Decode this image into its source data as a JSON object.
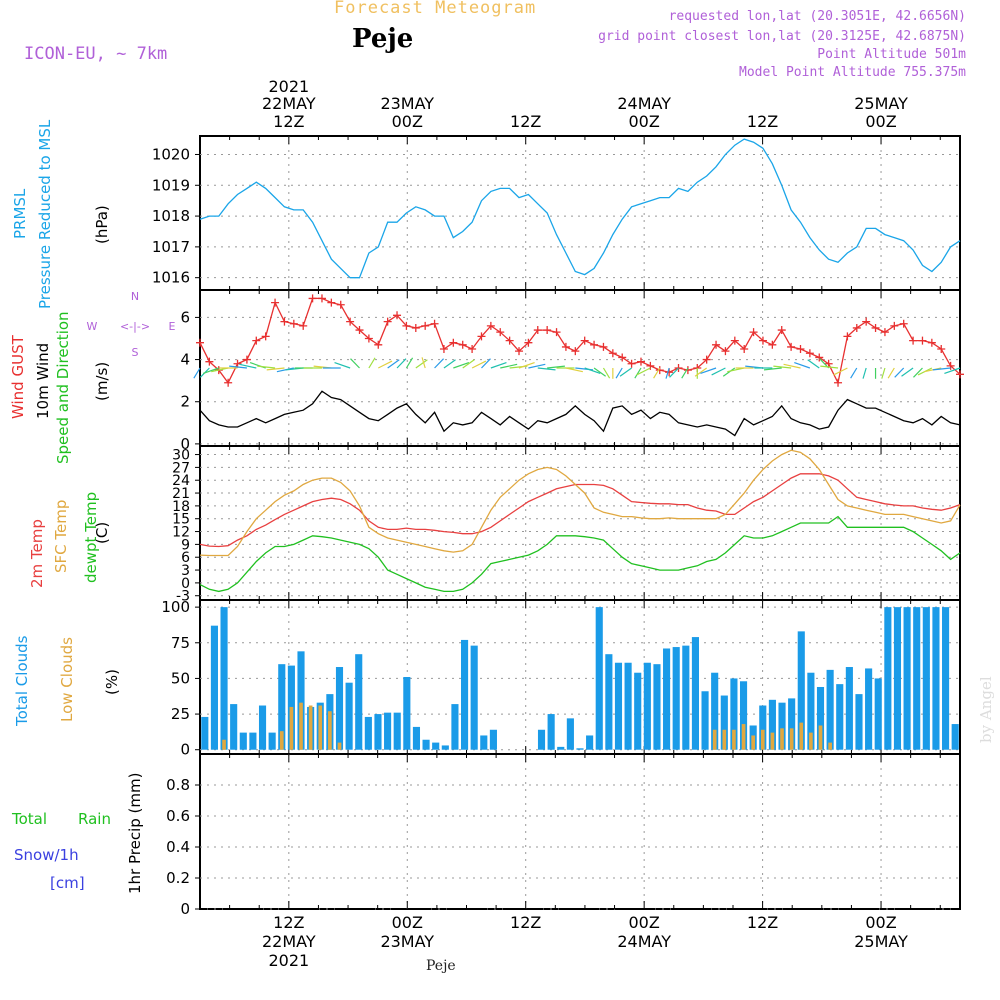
{
  "header": {
    "title": "Forecast Meteogram",
    "location": "Peje",
    "model": "ICON-EU, ~ 7km",
    "requested": "requested lon,lat (20.3051E, 42.6656N)",
    "gridpoint": "grid point closest lon,lat (20.3125E, 42.6875N)",
    "point_altitude": "Point Altitude 501m",
    "model_altitude": "Model Point Altitude 755.375m",
    "footer_location": "Peje",
    "watermark": "by Angel"
  },
  "time_axis": {
    "top": [
      {
        "year": "2021",
        "date": "22MAY",
        "hour": "12Z"
      },
      {
        "year": "",
        "date": "23MAY",
        "hour": "00Z"
      },
      {
        "year": "",
        "date": "",
        "hour": "12Z"
      },
      {
        "year": "",
        "date": "24MAY",
        "hour": "00Z"
      },
      {
        "year": "",
        "date": "",
        "hour": "12Z"
      },
      {
        "year": "",
        "date": "25MAY",
        "hour": "00Z"
      }
    ],
    "bottom": [
      {
        "hour": "12Z",
        "date": "22MAY",
        "year": "2021"
      },
      {
        "hour": "00Z",
        "date": "23MAY",
        "year": ""
      },
      {
        "hour": "12Z",
        "date": "",
        "year": ""
      },
      {
        "hour": "00Z",
        "date": "24MAY",
        "year": ""
      },
      {
        "hour": "12Z",
        "date": "",
        "year": ""
      },
      {
        "hour": "00Z",
        "date": "25MAY",
        "year": ""
      }
    ]
  },
  "panels": {
    "pressure": {
      "label1": "PRMSL",
      "label2": "Pressure Reduced to MSL",
      "unit": "(hPa)"
    },
    "wind": {
      "gust": "Wind GUST",
      "wind10": "10m Wind",
      "speeddir": "Speed and Direction",
      "unit": "(m/s)",
      "compass_n": "N",
      "compass_s": "S",
      "compass_w": "W",
      "compass_e": "E",
      "compass_arrows": "<-|->"
    },
    "temp": {
      "t2m": "2m Temp",
      "sfc": "SFC Temp",
      "dew": "dewpt Temp",
      "unit": "(C)"
    },
    "cloud": {
      "total": "Total Clouds",
      "low": "Low Clouds",
      "unit": "(%)"
    },
    "precip": {
      "total_a": "Total",
      "total_b": "Rain",
      "snow": "Snow/1h",
      "snow_unit": "[cm]",
      "axis": "1hr Precip (mm)"
    }
  },
  "colors": {
    "pressure": "#1aa5e8",
    "gust": "#e83030",
    "wind": "#000000",
    "t2m": "#e84040",
    "sfc": "#e0a840",
    "dew": "#20c020",
    "total_cloud": "#1a9be8",
    "low_cloud": "#e0a840",
    "grid": "#999999",
    "title": "#f0c060",
    "purple": "#b060d8",
    "green": "#20c020",
    "blue": "#3a40e0"
  },
  "chart_data": [
    {
      "type": "line",
      "title": "PRMSL Pressure Reduced to MSL",
      "ylabel": "(hPa)",
      "ylim": [
        1015.6,
        1020.6
      ],
      "yticks": [
        1016,
        1017,
        1018,
        1019,
        1020
      ],
      "x_unit": "hours from 22MAY 03Z",
      "xlim": [
        0,
        77
      ],
      "series": [
        {
          "name": "PRMSL",
          "values": [
            1017.9,
            1018.0,
            1018.0,
            1018.4,
            1018.7,
            1018.9,
            1019.1,
            1018.9,
            1018.6,
            1018.3,
            1018.2,
            1018.2,
            1017.8,
            1017.2,
            1016.6,
            1016.3,
            1016.0,
            1016.0,
            1016.8,
            1017.0,
            1017.8,
            1017.8,
            1018.1,
            1018.3,
            1018.2,
            1018.0,
            1018.0,
            1017.3,
            1017.5,
            1017.8,
            1018.5,
            1018.8,
            1018.9,
            1018.9,
            1018.6,
            1018.7,
            1018.4,
            1018.1,
            1017.4,
            1016.8,
            1016.2,
            1016.1,
            1016.3,
            1016.8,
            1017.4,
            1017.9,
            1018.3,
            1018.4,
            1018.5,
            1018.6,
            1018.6,
            1018.9,
            1018.8,
            1019.1,
            1019.3,
            1019.6,
            1020.0,
            1020.3,
            1020.5,
            1020.4,
            1020.2,
            1019.7,
            1019.0,
            1018.2,
            1017.8,
            1017.3,
            1016.9,
            1016.6,
            1016.5,
            1016.8,
            1017.0,
            1017.6,
            1017.6,
            1017.4,
            1017.3,
            1017.2,
            1016.9,
            1016.4,
            1016.2,
            1016.5,
            1017.0,
            1017.2
          ]
        }
      ]
    },
    {
      "type": "line",
      "title": "Wind GUST / 10m Wind Speed and Direction",
      "ylabel": "(m/s)",
      "ylim": [
        -0.1,
        7.3
      ],
      "yticks": [
        0,
        2,
        4,
        6
      ],
      "xlim": [
        0,
        77
      ],
      "series": [
        {
          "name": "Wind GUST",
          "values": [
            4.8,
            3.9,
            3.5,
            2.9,
            3.8,
            4.0,
            4.9,
            5.1,
            6.7,
            5.8,
            5.7,
            5.6,
            6.9,
            6.9,
            6.7,
            6.6,
            5.8,
            5.4,
            5.0,
            4.7,
            5.8,
            6.1,
            5.6,
            5.5,
            5.6,
            5.7,
            4.5,
            4.8,
            4.7,
            4.5,
            5.1,
            5.6,
            5.3,
            4.9,
            4.4,
            4.8,
            5.4,
            5.4,
            5.3,
            4.6,
            4.4,
            4.9,
            4.7,
            4.6,
            4.3,
            4.1,
            3.8,
            3.9,
            3.7,
            3.5,
            3.4,
            3.6,
            3.5,
            3.6,
            4.0,
            4.7,
            4.4,
            4.9,
            4.5,
            5.3,
            4.9,
            4.7,
            5.4,
            4.6,
            4.5,
            4.3,
            4.1,
            3.8,
            2.9,
            5.1,
            5.5,
            5.8,
            5.5,
            5.3,
            5.6,
            5.7,
            4.9,
            4.9,
            4.8,
            4.5,
            3.7,
            3.3
          ]
        },
        {
          "name": "10m Wind",
          "values": [
            1.6,
            1.1,
            0.9,
            0.8,
            0.8,
            1.0,
            1.2,
            1.0,
            1.2,
            1.4,
            1.5,
            1.6,
            1.9,
            2.5,
            2.2,
            2.1,
            1.8,
            1.5,
            1.2,
            1.1,
            1.4,
            1.7,
            1.9,
            1.4,
            1.0,
            1.5,
            0.6,
            1.0,
            0.9,
            1.0,
            1.5,
            1.2,
            0.9,
            1.3,
            1.0,
            0.7,
            1.1,
            1.0,
            1.2,
            1.4,
            1.8,
            1.4,
            1.1,
            0.6,
            1.7,
            1.8,
            1.4,
            1.6,
            1.2,
            1.5,
            1.4,
            1.0,
            0.9,
            0.8,
            0.9,
            0.8,
            0.7,
            0.4,
            1.2,
            0.9,
            1.1,
            1.3,
            1.8,
            1.2,
            1.0,
            0.9,
            0.7,
            0.8,
            1.6,
            2.1,
            1.9,
            1.7,
            1.7,
            1.5,
            1.3,
            1.1,
            1.0,
            1.2,
            0.9,
            1.3,
            1.0,
            0.9
          ]
        }
      ]
    },
    {
      "type": "line",
      "title": "2m Temp / SFC Temp / dewpt Temp",
      "ylabel": "(C)",
      "ylim": [
        -4,
        32
      ],
      "yticks": [
        -3,
        0,
        3,
        6,
        9,
        12,
        15,
        18,
        21,
        24,
        27,
        30
      ],
      "xlim": [
        0,
        77
      ],
      "series": [
        {
          "name": "2m Temp",
          "values": [
            9,
            8.6,
            8.5,
            8.7,
            10,
            11,
            12.5,
            13.5,
            14.8,
            16,
            17,
            18,
            19,
            19.5,
            19.8,
            19.5,
            18.5,
            17,
            14.5,
            13,
            12.5,
            12.5,
            12.8,
            12.5,
            12.5,
            12.3,
            12,
            11.8,
            11.5,
            11.5,
            12,
            13,
            14.5,
            16,
            17.5,
            19,
            20,
            21,
            22,
            22.5,
            23,
            23,
            23,
            22.8,
            22,
            20.5,
            19,
            18.8,
            18.6,
            18.5,
            18.5,
            18.3,
            18.3,
            17.5,
            17,
            16.8,
            16,
            16,
            17.5,
            19,
            20,
            21.5,
            23,
            24.5,
            25.5,
            25.5,
            25.5,
            25,
            24,
            22,
            20,
            19.5,
            19,
            18.5,
            18.2,
            18,
            18,
            17.5,
            17.2,
            17,
            17.5,
            18.3
          ]
        },
        {
          "name": "SFC Temp",
          "values": [
            6.5,
            6.4,
            6.4,
            6.4,
            8.5,
            12,
            15,
            17,
            19,
            20.5,
            21.5,
            23,
            24,
            24.5,
            24.5,
            23.5,
            21.5,
            18,
            13,
            11.5,
            10.5,
            10,
            9.5,
            9,
            8.5,
            8,
            7.5,
            7.2,
            7.5,
            9,
            13,
            17,
            20,
            22,
            24,
            25.5,
            26.5,
            27,
            26.5,
            25,
            23,
            21,
            17.5,
            16.5,
            16,
            15.5,
            15.5,
            15.2,
            15,
            15,
            15.2,
            15,
            15,
            15,
            15,
            15,
            16,
            18.5,
            21,
            24,
            26.5,
            28.5,
            30,
            31,
            30.5,
            29,
            26.5,
            23,
            19.5,
            18,
            17.5,
            17,
            16.5,
            16,
            16,
            16,
            15.5,
            15,
            14.5,
            14,
            14.5,
            18.2
          ]
        },
        {
          "name": "dewpt Temp",
          "values": [
            -0.4,
            -1.5,
            -2,
            -1.5,
            0,
            2.5,
            5,
            7,
            8.5,
            8.5,
            9,
            10,
            11,
            10.8,
            10.5,
            10,
            9.5,
            9,
            8,
            6,
            3,
            2,
            1,
            0,
            -1,
            -1.5,
            -2,
            -2,
            -1.5,
            0,
            2,
            4.5,
            5,
            5.5,
            6,
            6.5,
            7.5,
            9,
            11,
            11,
            11,
            10.8,
            10.5,
            10,
            8,
            6,
            4.5,
            4,
            3.5,
            3,
            3,
            3,
            3.5,
            4,
            5,
            5.5,
            7,
            9,
            11,
            10.5,
            10.5,
            11,
            12,
            13,
            14,
            14,
            14,
            14,
            15.5,
            13,
            13,
            13,
            13,
            13,
            13,
            13,
            12,
            10.5,
            9,
            7.5,
            5.5,
            7
          ]
        }
      ]
    },
    {
      "type": "bar",
      "title": "Total Clouds / Low Clouds",
      "ylabel": "(%)",
      "ylim": [
        -3,
        105
      ],
      "yticks": [
        0,
        25,
        50,
        75,
        100
      ],
      "xlim": [
        0,
        77
      ],
      "series": [
        {
          "name": "Total Clouds",
          "values": [
            23,
            87,
            100,
            32,
            12,
            12,
            31,
            12,
            60,
            59,
            69,
            30,
            33,
            39,
            58,
            47,
            67,
            23,
            25,
            26,
            26,
            51,
            16,
            7,
            5,
            3,
            32,
            77,
            73,
            10,
            14,
            0,
            0,
            0,
            0,
            14,
            25,
            2,
            22,
            1,
            10,
            100,
            67,
            61,
            61,
            54,
            61,
            60,
            71,
            72,
            73,
            79,
            41,
            54,
            38,
            50,
            48,
            17,
            31,
            35,
            33,
            36,
            83,
            54,
            44,
            56,
            46,
            58,
            39,
            57,
            50,
            100,
            100,
            100,
            100,
            100,
            100,
            100,
            18
          ]
        },
        {
          "name": "Low Clouds",
          "values": [
            0,
            0,
            7,
            0,
            0,
            0,
            0,
            0,
            13,
            30,
            33,
            31,
            31,
            27,
            5,
            0,
            0,
            0,
            0,
            0,
            0,
            0,
            0,
            0,
            0,
            0,
            0,
            0,
            0,
            0,
            0,
            0,
            0,
            0,
            0,
            0,
            0,
            0,
            0,
            0,
            0,
            0,
            0,
            0,
            0,
            0,
            0,
            0,
            0,
            0,
            0,
            0,
            0,
            14,
            14,
            14,
            18,
            10,
            14,
            12,
            15,
            15,
            19,
            12,
            17,
            5,
            0,
            0,
            0,
            0,
            0,
            0,
            0,
            0,
            0,
            0,
            0,
            0
          ]
        }
      ]
    },
    {
      "type": "line",
      "title": "1hr Precip",
      "ylabel": "1hr Precip (mm)",
      "ylim": [
        0,
        1.0
      ],
      "yticks": [
        0,
        0.2,
        0.4,
        0.6,
        0.8
      ],
      "xlim": [
        0,
        77
      ],
      "series": [
        {
          "name": "Total Rain",
          "values": [
            0,
            0,
            0,
            0,
            0,
            0,
            0,
            0,
            0,
            0,
            0,
            0,
            0,
            0,
            0,
            0,
            0,
            0,
            0,
            0,
            0,
            0,
            0,
            0,
            0,
            0,
            0,
            0,
            0,
            0,
            0,
            0,
            0,
            0,
            0,
            0,
            0,
            0,
            0,
            0,
            0,
            0,
            0,
            0,
            0,
            0,
            0,
            0,
            0,
            0,
            0,
            0,
            0,
            0,
            0,
            0,
            0,
            0,
            0,
            0,
            0,
            0,
            0,
            0,
            0,
            0,
            0,
            0,
            0,
            0,
            0,
            0,
            0,
            0,
            0,
            0,
            0,
            0,
            0,
            0,
            0,
            0
          ]
        }
      ]
    }
  ]
}
